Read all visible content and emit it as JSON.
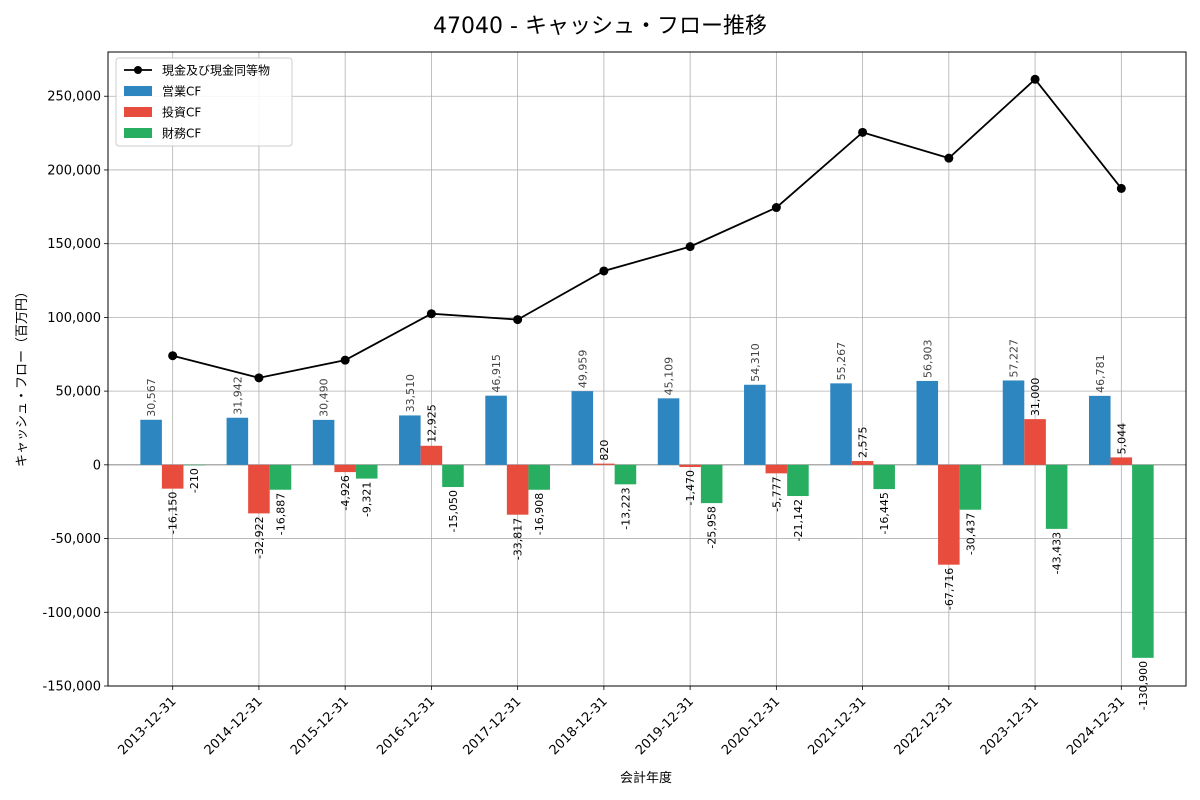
{
  "chart_data": {
    "type": "bar",
    "title": "47040 - キャッシュ・フロー推移",
    "xlabel": "会計年度",
    "ylabel": "キャッシュ・フロー（百万円）",
    "ylim": [
      -150000,
      280000
    ],
    "yticks": [
      -150000,
      -100000,
      -50000,
      0,
      50000,
      100000,
      150000,
      200000,
      250000
    ],
    "ytick_labels": [
      "-150,000",
      "-100,000",
      "-50,000",
      "0",
      "50,000",
      "100,000",
      "150,000",
      "200,000",
      "250,000"
    ],
    "grid": true,
    "legend_position": "top-left",
    "categories": [
      "2013-12-31",
      "2014-12-31",
      "2015-12-31",
      "2016-12-31",
      "2017-12-31",
      "2018-12-31",
      "2019-12-31",
      "2020-12-31",
      "2021-12-31",
      "2022-12-31",
      "2023-12-31",
      "2024-12-31"
    ],
    "series": [
      {
        "name": "営業CF",
        "kind": "bar",
        "color": "#2e86c1",
        "values": [
          30567,
          31942,
          30490,
          33510,
          46915,
          49959,
          45109,
          54310,
          55267,
          56903,
          57227,
          46781
        ],
        "labels": [
          "30,567",
          "31,942",
          "30,490",
          "33,510",
          "46,915",
          "49,959",
          "45,109",
          "54,310",
          "55,267",
          "56,903",
          "57,227",
          "46,781"
        ]
      },
      {
        "name": "投資CF",
        "kind": "bar",
        "color": "#e74c3c",
        "values": [
          -16150,
          -32922,
          -4926,
          12925,
          -33817,
          820,
          -1470,
          -5777,
          2575,
          -67716,
          31000,
          5044
        ],
        "labels": [
          "-16,150",
          "-32,922",
          "-4,926",
          "12,925",
          "-33,817",
          "820",
          "-1,470",
          "-5,777",
          "2,575",
          "-67,716",
          "31,000",
          "5,044"
        ]
      },
      {
        "name": "財務CF",
        "kind": "bar",
        "color": "#27ae60",
        "values": [
          -210,
          -16887,
          -9321,
          -15050,
          -16908,
          -13223,
          -25958,
          -21142,
          -16445,
          -30437,
          -43433,
          -130900
        ],
        "labels": [
          "-210",
          "-16,887",
          "-9,321",
          "-15,050",
          "-16,908",
          "-13,223",
          "-25,958",
          "-21,142",
          "-16,445",
          "-30,437",
          "-43,433",
          "-130,900"
        ]
      },
      {
        "name": "現金及び現金同等物",
        "kind": "line",
        "color": "#000000",
        "values": [
          74000,
          59000,
          71000,
          102500,
          98500,
          131500,
          148000,
          174500,
          225500,
          208000,
          261500,
          187500
        ]
      }
    ]
  }
}
